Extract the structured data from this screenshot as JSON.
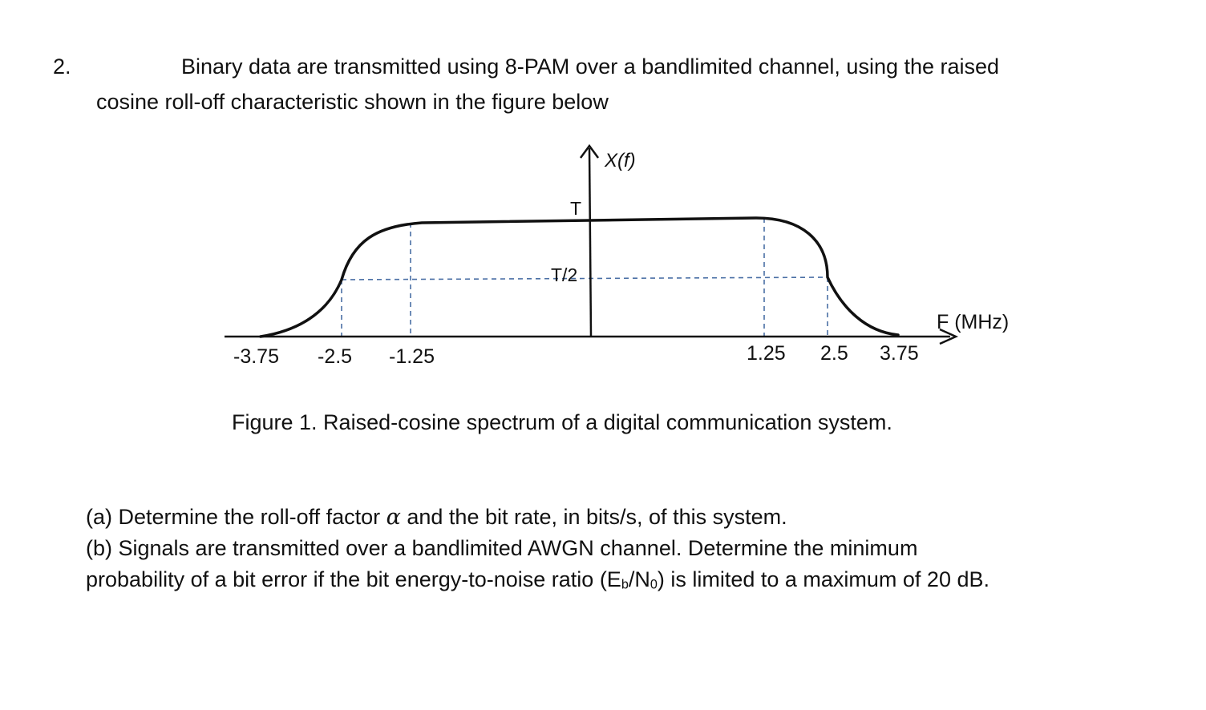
{
  "question": {
    "number": "2.",
    "intro_line1": "Binary data are transmitted using 8-PAM over a bandlimited channel, using the raised",
    "intro_line2": "cosine roll-off characteristic shown in the figure below"
  },
  "figure": {
    "y_axis_label": "X(f)",
    "x_axis_label": "F (MHz)",
    "level_T": "T",
    "level_half_T": "T/2",
    "tick_labels_left": [
      "-3.75",
      "-2.5",
      "-1.25"
    ],
    "tick_labels_right": [
      "1.25",
      "2.5",
      "3.75"
    ],
    "caption": "Figure 1. Raised-cosine spectrum of a digital communication system."
  },
  "chart_data": {
    "type": "line",
    "xlabel": "F (MHz)",
    "ylabel": "X(f)",
    "x_ticks": [
      -3.75,
      -2.5,
      -1.25,
      1.25,
      2.5,
      3.75
    ],
    "y_ticks": [
      "T/2",
      "T"
    ],
    "series": [
      {
        "x": [
          -3.75,
          -2.5,
          -1.25,
          1.25,
          2.5,
          3.75
        ],
        "y": [
          0,
          0.5,
          1,
          1,
          0.5,
          0
        ]
      }
    ],
    "y_unit": "T"
  },
  "parts": {
    "a_prefix": "(a) Determine the roll-off factor ",
    "a_symbol": "α",
    "a_suffix": " and the bit rate, in bits/s, of this system.",
    "b_line1": "(b) Signals are transmitted over a bandlimited AWGN channel. Determine the minimum",
    "b_line2_prefix": "probability of a bit error if the bit energy-to-noise ratio (E",
    "b_sub_1": "b",
    "b_mid": "/N",
    "b_sub_2": "0",
    "b_line2_suffix": ") is limited to a maximum of 20 dB."
  }
}
